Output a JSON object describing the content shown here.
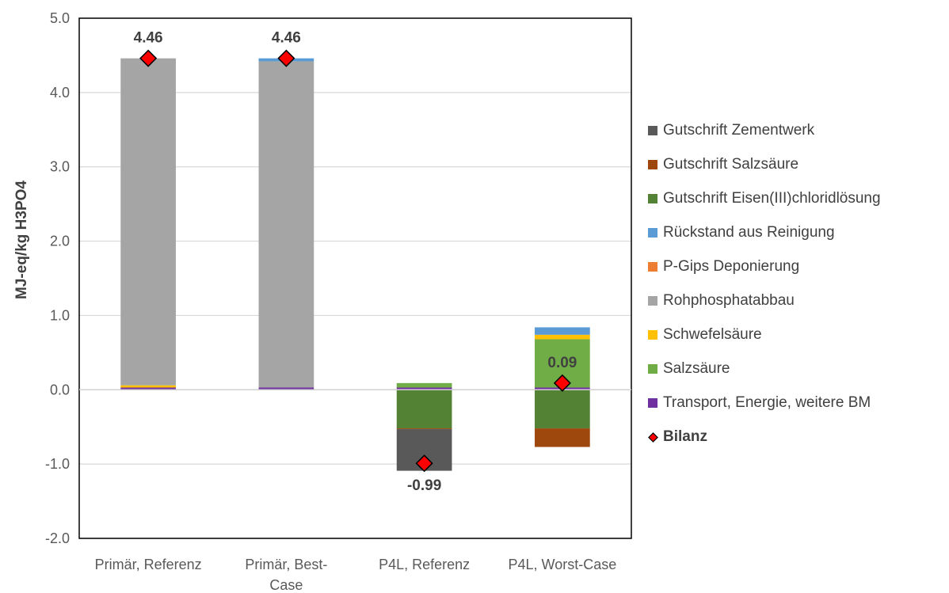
{
  "chart_data": {
    "type": "bar",
    "stacked": true,
    "title": "",
    "xlabel": "",
    "ylabel": "MJ-eq/kg H3PO4",
    "ylim": [
      -2.0,
      5.0
    ],
    "yticks": [
      "5.0",
      "4.0",
      "3.0",
      "2.0",
      "1.0",
      "0.0",
      "-1.0",
      "-2.0"
    ],
    "grid": true,
    "legend_position": "right",
    "categories": [
      "Primär, Referenz",
      "Primär, Best-Case",
      "P4L, Referenz",
      "P4L, Worst-Case"
    ],
    "category_lines": [
      [
        "Primär, Referenz"
      ],
      [
        "Primär, Best-",
        "Case"
      ],
      [
        "P4L, Referenz"
      ],
      [
        "P4L, Worst-Case"
      ]
    ],
    "series": [
      {
        "name": "Gutschrift Zementwerk",
        "color": "#595959",
        "values": [
          0,
          0,
          -0.56,
          0
        ]
      },
      {
        "name": "Gutschrift Salzsäure",
        "color": "#9E480E",
        "values": [
          0,
          0,
          -0.01,
          -0.25
        ]
      },
      {
        "name": "Gutschrift Eisen(III)chloridlösung",
        "color": "#548235",
        "values": [
          0,
          0,
          -0.52,
          -0.52
        ]
      },
      {
        "name": "Rückstand aus Reinigung",
        "color": "#5B9BD5",
        "values": [
          0,
          0.04,
          0,
          0.1
        ]
      },
      {
        "name": "P-Gips Deponierung",
        "color": "#ED7D31",
        "values": [
          0,
          0,
          0,
          0
        ]
      },
      {
        "name": "Rohphosphatabbau",
        "color": "#A5A5A5",
        "values": [
          4.4,
          4.39,
          0,
          0
        ]
      },
      {
        "name": "Schwefelsäure",
        "color": "#FFC000",
        "values": [
          0.03,
          0,
          0,
          0.06
        ]
      },
      {
        "name": "Salzsäure",
        "color": "#70AD47",
        "values": [
          0,
          0,
          0.06,
          0.65
        ]
      },
      {
        "name": "Transport, Energie, weitere BM",
        "color": "#7030A0",
        "values": [
          0.03,
          0.03,
          0.03,
          0.03
        ]
      }
    ],
    "balance": {
      "name": "Bilanz",
      "color": "#FF0000",
      "values": [
        4.46,
        4.46,
        -0.99,
        0.09
      ],
      "labels": [
        "4.46",
        "4.46",
        "-0.99",
        "0.09"
      ]
    }
  }
}
